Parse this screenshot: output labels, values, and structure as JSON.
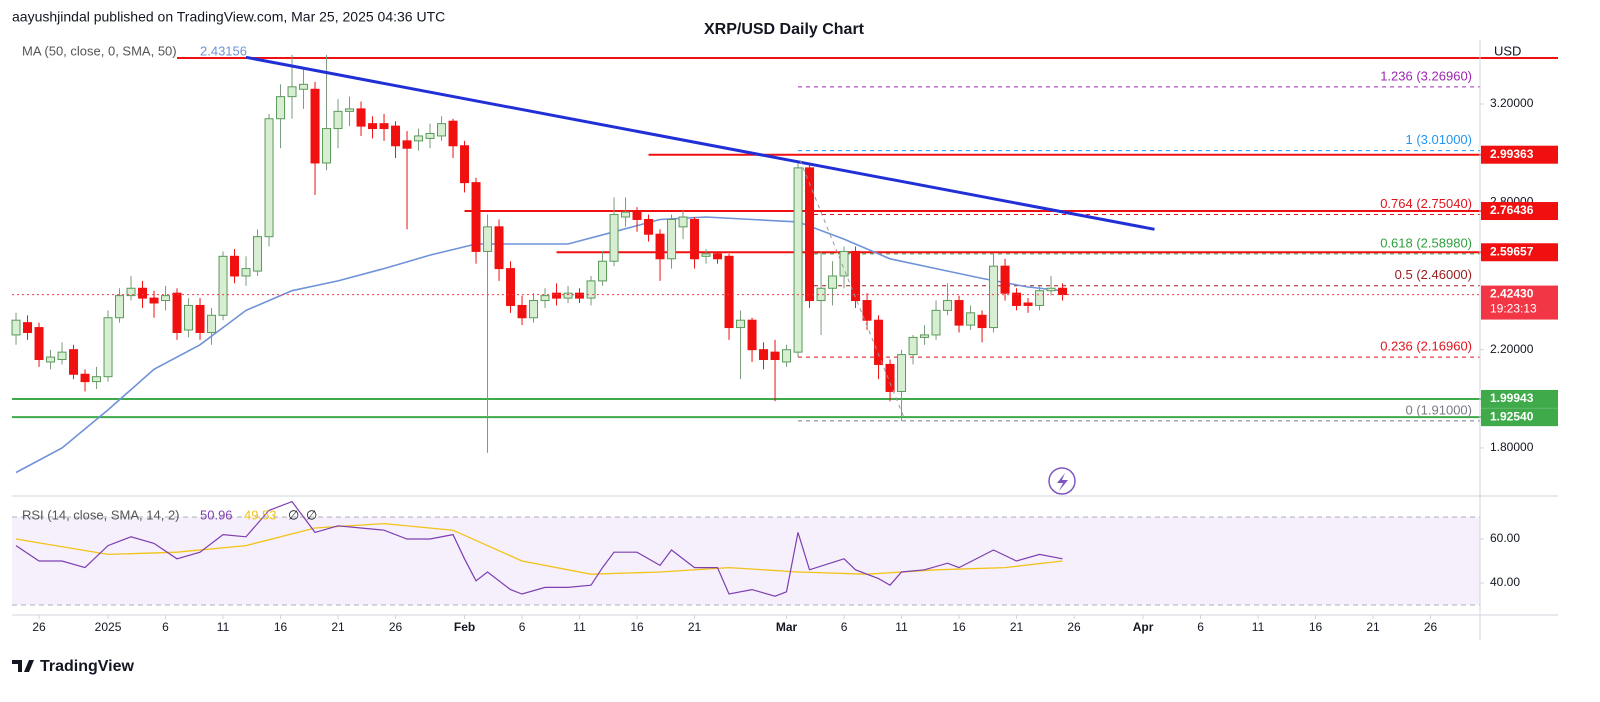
{
  "chart_data": {
    "type": "candlestick",
    "title": "XRP/USD Daily Chart",
    "attribution": "aayushjindal published on TradingView.com, Mar 25, 2025 04:36 UTC",
    "currency": "USD",
    "brand": "TradingView",
    "up_color": "#d7eed3",
    "up_border": "#5a9a5a",
    "down_color": "#f01010",
    "x": [
      -8,
      -7,
      -6,
      -5,
      -4,
      -3,
      -2,
      -1,
      0,
      1,
      2,
      3,
      4,
      5,
      6,
      7,
      8,
      9,
      10,
      11,
      12,
      13,
      14,
      15,
      16,
      17,
      18,
      19,
      20,
      21,
      22,
      23,
      24,
      25,
      26,
      27,
      28,
      29,
      30,
      31,
      32,
      33,
      34,
      35,
      36,
      37,
      38,
      39,
      40,
      41,
      42,
      43,
      44,
      45,
      46,
      47,
      48,
      49,
      50,
      51,
      52,
      53,
      54,
      55,
      56,
      57,
      58,
      59,
      60,
      61,
      62,
      63,
      64,
      65,
      66,
      67,
      68,
      69,
      70,
      71,
      72,
      73,
      74,
      75,
      76,
      77,
      78,
      79,
      80,
      81,
      82,
      83
    ],
    "open": [
      2.26,
      2.31,
      2.29,
      2.15,
      2.16,
      2.2,
      2.1,
      2.07,
      2.09,
      2.33,
      2.42,
      2.45,
      2.41,
      2.4,
      2.43,
      2.28,
      2.38,
      2.27,
      2.34,
      2.58,
      2.5,
      2.52,
      2.66,
      3.14,
      3.23,
      3.26,
      3.26,
      2.96,
      3.1,
      3.17,
      3.18,
      3.12,
      3.12,
      3.11,
      3.05,
      3.05,
      3.06,
      3.07,
      3.13,
      3.03,
      2.88,
      2.6,
      2.7,
      2.53,
      2.38,
      2.33,
      2.4,
      2.43,
      2.41,
      2.43,
      2.41,
      2.48,
      2.56,
      2.74,
      2.76,
      2.73,
      2.67,
      2.57,
      2.7,
      2.73,
      2.58,
      2.59,
      2.58,
      2.29,
      2.32,
      2.2,
      2.19,
      2.15,
      2.19,
      2.94,
      2.4,
      2.45,
      2.5,
      2.6,
      2.4,
      2.32,
      2.14,
      2.03,
      2.18,
      2.25,
      2.26,
      2.36,
      2.4,
      2.3,
      2.34,
      2.29,
      2.54,
      2.43,
      2.39,
      2.38,
      2.44,
      2.45
    ],
    "high": [
      2.35,
      2.34,
      2.31,
      2.2,
      2.23,
      2.22,
      2.12,
      2.13,
      2.36,
      2.45,
      2.5,
      2.48,
      2.44,
      2.46,
      2.45,
      2.41,
      2.41,
      2.37,
      2.6,
      2.61,
      2.58,
      2.69,
      3.16,
      3.28,
      3.4,
      3.35,
      3.29,
      3.4,
      3.22,
      3.23,
      3.21,
      3.15,
      3.16,
      3.13,
      3.09,
      3.1,
      3.12,
      3.15,
      3.14,
      3.05,
      2.9,
      2.75,
      2.73,
      2.56,
      2.42,
      2.43,
      2.45,
      2.47,
      2.46,
      2.45,
      2.5,
      2.6,
      2.82,
      2.82,
      2.78,
      2.75,
      2.69,
      2.75,
      2.77,
      2.74,
      2.61,
      2.6,
      2.59,
      2.36,
      2.33,
      2.23,
      2.24,
      2.22,
      2.96,
      2.95,
      2.6,
      2.56,
      2.62,
      2.62,
      2.43,
      2.34,
      2.16,
      2.2,
      2.26,
      2.3,
      2.4,
      2.47,
      2.42,
      2.38,
      2.36,
      2.59,
      2.57,
      2.45,
      2.41,
      2.46,
      2.5,
      2.47
    ],
    "low": [
      2.22,
      2.24,
      2.13,
      2.12,
      2.14,
      2.08,
      2.03,
      2.04,
      2.07,
      2.31,
      2.4,
      2.37,
      2.33,
      2.36,
      2.24,
      2.25,
      2.24,
      2.22,
      2.32,
      2.47,
      2.46,
      2.5,
      2.62,
      3.02,
      3.14,
      3.18,
      2.83,
      2.93,
      3.02,
      3.11,
      3.07,
      3.06,
      3.05,
      2.98,
      2.69,
      3.01,
      3.02,
      3.05,
      2.98,
      2.84,
      2.55,
      1.78,
      2.48,
      2.35,
      2.3,
      2.31,
      2.37,
      2.38,
      2.39,
      2.39,
      2.38,
      2.46,
      2.54,
      2.7,
      2.68,
      2.64,
      2.48,
      2.53,
      2.65,
      2.53,
      2.55,
      2.55,
      2.24,
      2.08,
      2.15,
      2.12,
      1.99,
      2.13,
      2.17,
      2.37,
      2.26,
      2.38,
      2.45,
      2.37,
      2.28,
      2.08,
      1.99,
      1.91,
      2.14,
      2.22,
      2.24,
      2.34,
      2.27,
      2.28,
      2.23,
      2.27,
      2.4,
      2.36,
      2.35,
      2.36,
      2.42,
      2.4
    ],
    "close": [
      2.32,
      2.27,
      2.16,
      2.17,
      2.19,
      2.1,
      2.07,
      2.09,
      2.33,
      2.42,
      2.45,
      2.41,
      2.39,
      2.42,
      2.27,
      2.38,
      2.27,
      2.34,
      2.58,
      2.5,
      2.53,
      2.66,
      3.14,
      3.23,
      3.27,
      3.28,
      2.96,
      3.1,
      3.17,
      3.18,
      3.11,
      3.1,
      3.1,
      3.03,
      3.02,
      3.07,
      3.08,
      3.12,
      3.03,
      2.88,
      2.6,
      2.7,
      2.53,
      2.38,
      2.33,
      2.4,
      2.42,
      2.41,
      2.43,
      2.41,
      2.48,
      2.56,
      2.75,
      2.76,
      2.73,
      2.67,
      2.57,
      2.73,
      2.74,
      2.57,
      2.59,
      2.57,
      2.29,
      2.32,
      2.2,
      2.16,
      2.16,
      2.2,
      2.94,
      2.4,
      2.45,
      2.5,
      2.6,
      2.4,
      2.32,
      2.14,
      2.03,
      2.18,
      2.25,
      2.26,
      2.36,
      2.4,
      2.3,
      2.35,
      2.29,
      2.54,
      2.43,
      2.38,
      2.38,
      2.44,
      2.45,
      2.4243
    ],
    "xlim": [
      -8.35,
      119.3
    ],
    "ylim": [
      1.6085,
      3.4605
    ],
    "xticks": [
      {
        "value": -6,
        "label": "26"
      },
      {
        "value": 0,
        "label": "2025"
      },
      {
        "value": 5,
        "label": "6"
      },
      {
        "value": 10,
        "label": "11"
      },
      {
        "value": 15,
        "label": "16"
      },
      {
        "value": 20,
        "label": "21"
      },
      {
        "value": 25,
        "label": "26"
      },
      {
        "value": 31,
        "label": "Feb"
      },
      {
        "value": 36,
        "label": "6"
      },
      {
        "value": 41,
        "label": "11"
      },
      {
        "value": 46,
        "label": "16"
      },
      {
        "value": 51,
        "label": "21"
      },
      {
        "value": 59,
        "label": "Mar"
      },
      {
        "value": 64,
        "label": "6"
      },
      {
        "value": 69,
        "label": "11"
      },
      {
        "value": 74,
        "label": "16"
      },
      {
        "value": 79,
        "label": "21"
      },
      {
        "value": 84,
        "label": "26"
      },
      {
        "value": 90,
        "label": "Apr"
      },
      {
        "value": 95,
        "label": "6"
      },
      {
        "value": 100,
        "label": "11"
      },
      {
        "value": 105,
        "label": "16"
      },
      {
        "value": 110,
        "label": "21"
      },
      {
        "value": 115,
        "label": "26"
      }
    ],
    "yticks": [
      {
        "value": 3.2,
        "label": "3.20000"
      },
      {
        "value": 2.8,
        "label": "2.80000"
      },
      {
        "value": 2.2,
        "label": "2.20000"
      },
      {
        "value": 1.8,
        "label": "1.80000"
      }
    ],
    "ma": {
      "label": "MA (50, close, 0, SMA, 50)",
      "last": 2.43156,
      "color": "#6f93d8",
      "x": [
        -8,
        -4,
        0,
        4,
        8,
        12,
        16,
        20,
        24,
        28,
        32,
        36,
        40,
        44,
        48,
        52,
        56,
        60,
        64,
        68,
        72,
        76,
        80,
        83
      ],
      "values": [
        1.7,
        1.8,
        1.955,
        2.12,
        2.22,
        2.36,
        2.44,
        2.48,
        2.53,
        2.585,
        2.63,
        2.63,
        2.63,
        2.68,
        2.73,
        2.74,
        2.73,
        2.72,
        2.65,
        2.57,
        2.53,
        2.49,
        2.455,
        2.44
      ]
    },
    "trendline": {
      "color": "#2130d6",
      "x": [
        12,
        91
      ],
      "values": [
        3.39,
        2.69
      ]
    },
    "levels": [
      {
        "value": 3.387,
        "color": "#f01010",
        "x0": 6
      },
      {
        "value": 2.99363,
        "label": "2.99363",
        "color": "#f01010",
        "x0": 47
      },
      {
        "value": 2.76436,
        "label": "2.76436",
        "color": "#f01010",
        "x0": 31
      },
      {
        "value": 2.59657,
        "label": "2.59657",
        "color": "#f01010",
        "x0": 39
      },
      {
        "value": 1.99943,
        "label": "1.99943",
        "color": "#3faa4a"
      },
      {
        "value": 1.9254,
        "label": "1.92540",
        "color": "#3faa4a"
      }
    ],
    "last_price": {
      "value": 2.4243,
      "label": "2.42430",
      "countdown": "19:23:13",
      "color": "#f23645"
    },
    "fib": {
      "x0": 60,
      "levels": [
        {
          "value": 3.2696,
          "label": "1.236 (3.26960)",
          "color": "#9c27b0"
        },
        {
          "value": 3.01,
          "label": "1 (3.01000)",
          "color": "#2196f3"
        },
        {
          "value": 2.7504,
          "label": "0.764 (2.75040)",
          "color": "#e0141e"
        },
        {
          "value": 2.5898,
          "label": "0.618 (2.58980)",
          "color": "#2e9e3e"
        },
        {
          "value": 2.46,
          "label": "0.5 (2.46000)",
          "color": "#9a1c1c"
        },
        {
          "value": 2.1696,
          "label": "0.236 (2.16960)",
          "color": "#e0141e"
        },
        {
          "value": 1.91,
          "label": "0 (1.91000)",
          "color": "#787b86"
        }
      ]
    },
    "rsi": {
      "label": "RSI (14, close, SMA, 14, 2)",
      "last": 50.96,
      "ma_last": 49.53,
      "extras": [
        "∅",
        "∅"
      ],
      "color": "#7e3fb0",
      "ma_color": "#f2c318",
      "band_color": "#9c6fd6",
      "ylim": [
        25.45,
        79.09
      ],
      "yticks": [
        {
          "value": 60,
          "label": "60.00"
        },
        {
          "value": 40,
          "label": "40.00"
        }
      ],
      "bands": [
        70,
        30
      ],
      "x": [
        -8,
        -6,
        -4,
        -2,
        0,
        2,
        4,
        6,
        8,
        10,
        12,
        14,
        16,
        18,
        20,
        22,
        24,
        26,
        28,
        30,
        31,
        32,
        33,
        35,
        36,
        38,
        40,
        42,
        43,
        44,
        46,
        48,
        49,
        51,
        53,
        54,
        56,
        58,
        59,
        60,
        61,
        64,
        65,
        67,
        68,
        69,
        71,
        73,
        74,
        77,
        79,
        81,
        83
      ],
      "values": [
        57,
        50,
        50,
        47,
        57,
        61,
        58,
        51,
        54,
        62,
        61,
        73,
        77,
        63,
        66,
        65,
        64,
        60,
        60,
        62,
        51,
        41,
        45,
        37,
        35,
        38,
        38,
        39,
        47,
        54,
        54,
        48,
        55,
        47,
        47,
        35,
        37,
        34,
        36,
        63,
        46,
        51,
        46,
        42,
        39,
        45,
        46,
        49,
        47,
        55,
        50,
        53,
        51
      ],
      "ma_x": [
        -8,
        0,
        6,
        12,
        18,
        24,
        30,
        36,
        42,
        48,
        54,
        60,
        66,
        72,
        78,
        83
      ],
      "ma_values": [
        60,
        53,
        54,
        57,
        65,
        67,
        64,
        50,
        44,
        45,
        47,
        45,
        44,
        46,
        47,
        50
      ]
    }
  }
}
